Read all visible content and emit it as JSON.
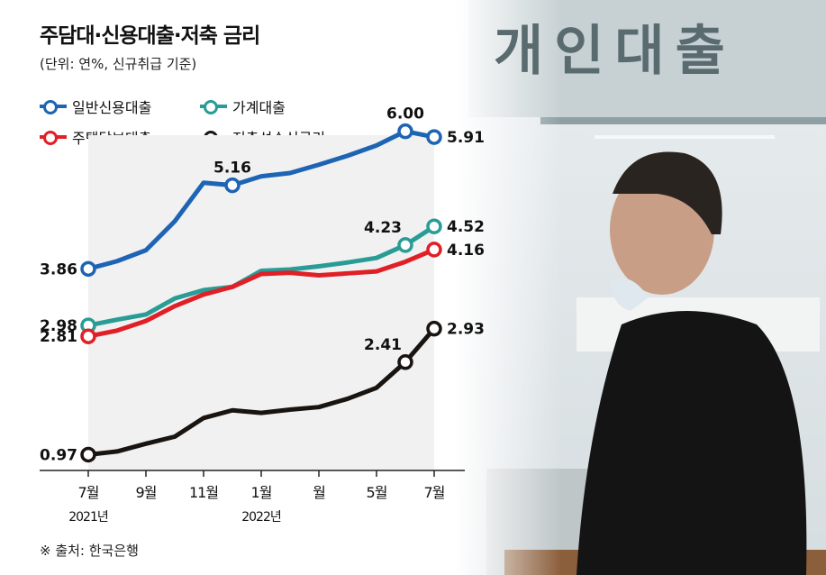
{
  "title": "주담대·신용대출·저축 금리",
  "subtitle": "(단위: 연%, 신규취급 기준)",
  "source": "※ 출처: 한국은행",
  "photo_sign": "개인대출",
  "legend": [
    {
      "label": "일반신용대출",
      "color": "#1e64b4"
    },
    {
      "label": "가계대출",
      "color": "#2a9c96"
    },
    {
      "label": "주택담보대출",
      "color": "#e01f26"
    },
    {
      "label": "저축성수신금리",
      "color": "#1a1410"
    }
  ],
  "chart_data": {
    "type": "line",
    "title": "주담대·신용대출·저축 금리",
    "x": [
      "2021-07",
      "2021-08",
      "2021-09",
      "2021-10",
      "2021-11",
      "2021-12",
      "2022-01",
      "2022-02",
      "2022-03",
      "2022-04",
      "2022-05",
      "2022-06",
      "2022-07"
    ],
    "tick_labels": [
      {
        "x": "2021-07",
        "label": "7월",
        "sub": "2021년"
      },
      {
        "x": "2021-09",
        "label": "9월",
        "sub": ""
      },
      {
        "x": "2021-11",
        "label": "11월",
        "sub": ""
      },
      {
        "x": "2022-01",
        "label": "1월",
        "sub": "2022년"
      },
      {
        "x": "2022-03",
        "label": "월",
        "sub": ""
      },
      {
        "x": "2022-05",
        "label": "5월",
        "sub": ""
      },
      {
        "x": "2022-07",
        "label": "7월",
        "sub": ""
      }
    ],
    "ylim": [
      0.5,
      6.5
    ],
    "series": [
      {
        "name": "일반신용대출",
        "color": "#1e64b4",
        "values": [
          3.86,
          3.98,
          4.15,
          4.6,
          5.2,
          5.16,
          5.3,
          5.35,
          5.48,
          5.62,
          5.78,
          6.0,
          5.91
        ],
        "markers": [
          {
            "i": 0,
            "label": "3.86",
            "pos": "left"
          },
          {
            "i": 5,
            "label": "5.16",
            "pos": "above"
          },
          {
            "i": 11,
            "label": "6.00",
            "pos": "above"
          },
          {
            "i": 12,
            "label": "5.91",
            "pos": "right"
          }
        ]
      },
      {
        "name": "가계대출",
        "color": "#2a9c96",
        "values": [
          2.98,
          3.07,
          3.15,
          3.4,
          3.53,
          3.58,
          3.83,
          3.85,
          3.9,
          3.96,
          4.03,
          4.23,
          4.52
        ],
        "markers": [
          {
            "i": 0,
            "label": "2.98",
            "pos": "left"
          },
          {
            "i": 11,
            "label": "4.23",
            "pos": "aboveleft"
          },
          {
            "i": 12,
            "label": "4.52",
            "pos": "right"
          }
        ]
      },
      {
        "name": "주택담보대출",
        "color": "#e01f26",
        "values": [
          2.81,
          2.9,
          3.05,
          3.28,
          3.46,
          3.58,
          3.78,
          3.8,
          3.76,
          3.79,
          3.82,
          3.97,
          4.16
        ],
        "markers": [
          {
            "i": 0,
            "label": "2.81",
            "pos": "left"
          },
          {
            "i": 12,
            "label": "4.16",
            "pos": "right"
          }
        ]
      },
      {
        "name": "저축성수신금리",
        "color": "#1a1410",
        "values": [
          0.97,
          1.02,
          1.14,
          1.25,
          1.54,
          1.66,
          1.62,
          1.67,
          1.71,
          1.84,
          2.01,
          2.41,
          2.93
        ],
        "markers": [
          {
            "i": 0,
            "label": "0.97",
            "pos": "left"
          },
          {
            "i": 11,
            "label": "2.41",
            "pos": "aboveleft"
          },
          {
            "i": 12,
            "label": "2.93",
            "pos": "right"
          }
        ]
      }
    ]
  }
}
